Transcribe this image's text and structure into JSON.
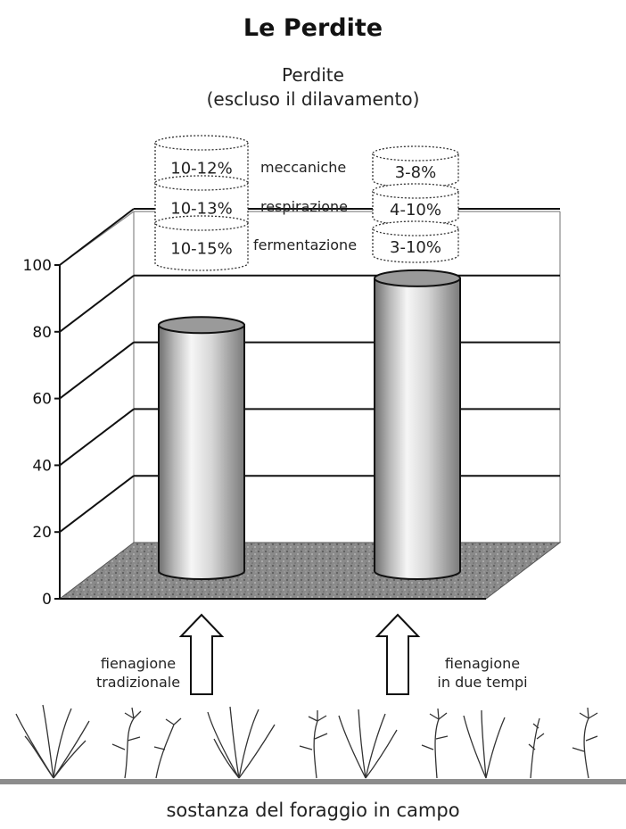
{
  "title": "Le Perdite",
  "chart_data": {
    "type": "bar",
    "title": "Perdite",
    "subtitle": "(escluso il dilavamento)",
    "categories": [
      "fienagione tradizionale",
      "fienagione in due tempi"
    ],
    "values": [
      74,
      88
    ],
    "ylim": [
      0,
      100
    ],
    "yticks": [
      "0",
      "20",
      "40",
      "60",
      "80",
      "100"
    ],
    "grid": true,
    "losses": {
      "labels": [
        "meccaniche",
        "respirazione",
        "fermentazione"
      ],
      "tradizionale": [
        "10-12%",
        "10-13%",
        "10-15%"
      ],
      "due_tempi": [
        "3-8%",
        "4-10%",
        "3-10%"
      ]
    }
  },
  "captions": {
    "left": [
      "fienagione",
      "tradizionale"
    ],
    "right": [
      "fienagione",
      "in due tempi"
    ]
  },
  "footer": "sostanza del foraggio in campo",
  "colors": {
    "bar_top": "#9a9a9a",
    "floor": "#7d7d7d",
    "ground": "#8c8c8c"
  }
}
